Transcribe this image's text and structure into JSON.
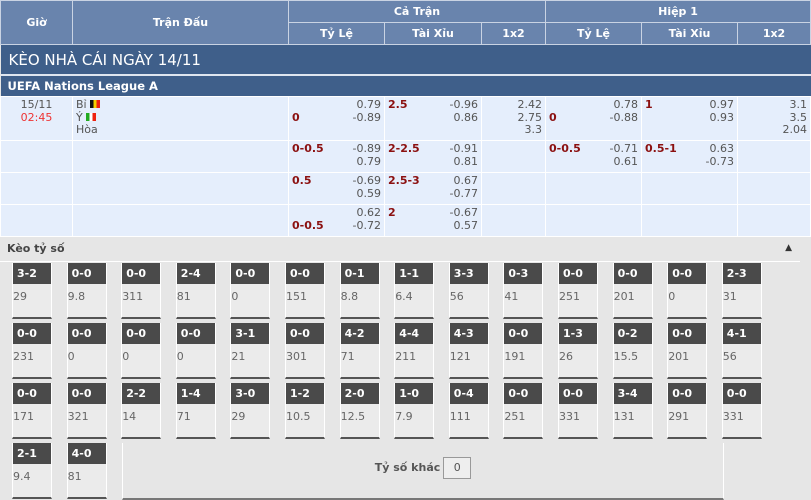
{
  "header": {
    "gio": "Giờ",
    "tran_dau": "Trận Đấu",
    "ca_tran": "Cả Trận",
    "hiep1": "Hiệp 1",
    "ty_le": "Tỷ Lệ",
    "tai_xiu": "Tài Xỉu",
    "x12": "1x2"
  },
  "title": "KÈO NHÀ CÁI NGÀY 14/11",
  "league": "UEFA Nations League A",
  "match": {
    "date": "15/11",
    "time": "02:45",
    "home": "Bỉ",
    "away": "Ý",
    "draw": "Hòa",
    "home_flag": "belgium-flag",
    "away_flag": "italy-flag"
  },
  "rows": [
    {
      "ft_hdp": {
        "line": "0",
        "favored": "away",
        "v": [
          "0.79",
          "-0.89"
        ]
      },
      "ft_ou": {
        "line": "2.5",
        "v": [
          "-0.96",
          "0.86"
        ]
      },
      "ft_1x2": [
        "2.42",
        "2.75",
        "3.3"
      ],
      "h1_hdp": {
        "line": "0",
        "favored": "away",
        "v": [
          "0.78",
          "-0.88"
        ]
      },
      "h1_ou": {
        "line": "1",
        "v": [
          "0.97",
          "0.93"
        ]
      },
      "h1_1x2": [
        "3.1",
        "3.5",
        "2.04"
      ]
    },
    {
      "ft_hdp": {
        "line": "0-0.5",
        "favored": "home",
        "v": [
          "-0.89",
          "0.79"
        ]
      },
      "ft_ou": {
        "line": "2-2.5",
        "v": [
          "-0.91",
          "0.81"
        ]
      },
      "ft_1x2": [],
      "h1_hdp": {
        "line": "0-0.5",
        "favored": "home",
        "v": [
          "-0.71",
          "0.61"
        ]
      },
      "h1_ou": {
        "line": "0.5-1",
        "v": [
          "0.63",
          "-0.73"
        ]
      },
      "h1_1x2": []
    },
    {
      "ft_hdp": {
        "line": "0.5",
        "favored": "home",
        "v": [
          "-0.69",
          "0.59"
        ]
      },
      "ft_ou": {
        "line": "2.5-3",
        "v": [
          "0.67",
          "-0.77"
        ]
      },
      "ft_1x2": [],
      "h1_hdp": null,
      "h1_ou": null,
      "h1_1x2": []
    },
    {
      "ft_hdp": {
        "line": "0-0.5",
        "favored": "away",
        "v": [
          "0.62",
          "-0.72"
        ]
      },
      "ft_ou": {
        "line": "2",
        "v": [
          "-0.67",
          "0.57"
        ]
      },
      "ft_1x2": [],
      "h1_hdp": null,
      "h1_ou": null,
      "h1_1x2": []
    }
  ],
  "correct_score": {
    "title": "Kèo tỷ số",
    "collapse_icon": "caret-up-icon",
    "items": [
      [
        "3-2",
        "29"
      ],
      [
        "0-0",
        "9.8"
      ],
      [
        "0-0",
        "311"
      ],
      [
        "2-4",
        "81"
      ],
      [
        "0-0",
        "0"
      ],
      [
        "0-0",
        "151"
      ],
      [
        "0-1",
        "8.8"
      ],
      [
        "1-1",
        "6.4"
      ],
      [
        "3-3",
        "56"
      ],
      [
        "0-3",
        "41"
      ],
      [
        "0-0",
        "251"
      ],
      [
        "0-0",
        "201"
      ],
      [
        "0-0",
        "0"
      ],
      [
        "2-3",
        "31"
      ],
      [
        "0-0",
        "231"
      ],
      [
        "0-0",
        "0"
      ],
      [
        "0-0",
        "0"
      ],
      [
        "0-0",
        "0"
      ],
      [
        "3-1",
        "21"
      ],
      [
        "0-0",
        "301"
      ],
      [
        "4-2",
        "71"
      ],
      [
        "4-4",
        "211"
      ],
      [
        "4-3",
        "121"
      ],
      [
        "0-0",
        "191"
      ],
      [
        "1-3",
        "26"
      ],
      [
        "0-2",
        "15.5"
      ],
      [
        "0-0",
        "201"
      ],
      [
        "4-1",
        "56"
      ],
      [
        "0-0",
        "171"
      ],
      [
        "0-0",
        "321"
      ],
      [
        "2-2",
        "14"
      ],
      [
        "1-4",
        "71"
      ],
      [
        "3-0",
        "29"
      ],
      [
        "1-2",
        "10.5"
      ],
      [
        "2-0",
        "12.5"
      ],
      [
        "1-0",
        "7.9"
      ],
      [
        "0-4",
        "111"
      ],
      [
        "0-0",
        "251"
      ],
      [
        "0-0",
        "331"
      ],
      [
        "3-4",
        "131"
      ],
      [
        "0-0",
        "291"
      ],
      [
        "0-0",
        "331"
      ],
      [
        "2-1",
        "9.4"
      ],
      [
        "4-0",
        "81"
      ]
    ],
    "other_label": "Tỷ số khác",
    "other_value": "0"
  }
}
